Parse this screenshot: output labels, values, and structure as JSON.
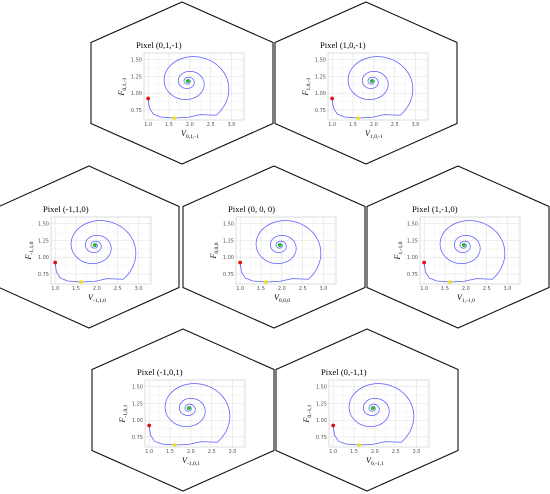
{
  "chart_data": [
    {
      "type": "line",
      "title": "Pixel (0,1,-1)",
      "xlabel_main": "V",
      "xlabel_sub": "0,1,-1",
      "ylabel_main": "F",
      "ylabel_sub": "0,1,-1",
      "xlim": [
        0.9,
        3.3
      ],
      "ylim": [
        0.6,
        1.6
      ],
      "xticks": [
        "1.0",
        "1.5",
        "2.0",
        "2.5",
        "3.0"
      ],
      "yticks": [
        "0.75",
        "1.00",
        "1.25",
        "1.50"
      ],
      "start_point": {
        "x": 1.0,
        "y": 0.92
      },
      "marker_point": {
        "x": 1.62,
        "y": 0.63
      },
      "equilibrium": {
        "x": 1.95,
        "y": 1.18
      }
    },
    {
      "type": "line",
      "title": "Pixel (1,0,-1)",
      "xlabel_main": "V",
      "xlabel_sub": "1,0,-1",
      "ylabel_main": "F",
      "ylabel_sub": "1,0,-1",
      "xlim": [
        0.9,
        3.3
      ],
      "ylim": [
        0.6,
        1.6
      ],
      "xticks": [
        "1.0",
        "1.5",
        "2.0",
        "2.5",
        "3.0"
      ],
      "yticks": [
        "0.75",
        "1.00",
        "1.25",
        "1.50"
      ],
      "start_point": {
        "x": 1.0,
        "y": 0.92
      },
      "marker_point": {
        "x": 1.62,
        "y": 0.63
      },
      "equilibrium": {
        "x": 1.95,
        "y": 1.18
      }
    },
    {
      "type": "line",
      "title": "Pixel (-1,1,0)",
      "xlabel_main": "V",
      "xlabel_sub": "-1,1,0",
      "ylabel_main": "F",
      "ylabel_sub": "-1,1,0",
      "xlim": [
        0.9,
        3.3
      ],
      "ylim": [
        0.6,
        1.6
      ],
      "xticks": [
        "1.0",
        "1.5",
        "2.0",
        "2.5",
        "3.0"
      ],
      "yticks": [
        "0.75",
        "1.00",
        "1.25",
        "1.50"
      ],
      "start_point": {
        "x": 1.0,
        "y": 0.92
      },
      "marker_point": {
        "x": 1.62,
        "y": 0.63
      },
      "equilibrium": {
        "x": 1.95,
        "y": 1.18
      }
    },
    {
      "type": "line",
      "title": "Pixel (0, 0, 0)",
      "xlabel_main": "V",
      "xlabel_sub": "0,0,0",
      "ylabel_main": "F",
      "ylabel_sub": "0,0,0",
      "xlim": [
        0.9,
        3.3
      ],
      "ylim": [
        0.6,
        1.6
      ],
      "xticks": [
        "1.0",
        "1.5",
        "2.0",
        "2.5",
        "3.0"
      ],
      "yticks": [
        "0.75",
        "1.00",
        "1.25",
        "1.50"
      ],
      "start_point": {
        "x": 1.0,
        "y": 0.92
      },
      "marker_point": {
        "x": 1.62,
        "y": 0.63
      },
      "equilibrium": {
        "x": 1.95,
        "y": 1.18
      }
    },
    {
      "type": "line",
      "title": "Pixel (1,-1,0)",
      "xlabel_main": "V",
      "xlabel_sub": "1,-1,0",
      "ylabel_main": "F",
      "ylabel_sub": "1,-1,0",
      "xlim": [
        0.9,
        3.3
      ],
      "ylim": [
        0.6,
        1.6
      ],
      "xticks": [
        "1.0",
        "1.5",
        "2.0",
        "2.5",
        "3.0"
      ],
      "yticks": [
        "0.75",
        "1.00",
        "1.25",
        "1.50"
      ],
      "start_point": {
        "x": 1.0,
        "y": 0.92
      },
      "marker_point": {
        "x": 1.62,
        "y": 0.63
      },
      "equilibrium": {
        "x": 1.95,
        "y": 1.18
      }
    },
    {
      "type": "line",
      "title": "Pixel (-1,0,1)",
      "xlabel_main": "V",
      "xlabel_sub": "-1,0,1",
      "ylabel_main": "F",
      "ylabel_sub": "-1,0,1",
      "xlim": [
        0.9,
        3.3
      ],
      "ylim": [
        0.6,
        1.6
      ],
      "xticks": [
        "1.0",
        "1.5",
        "2.0",
        "2.5",
        "3.0"
      ],
      "yticks": [
        "0.75",
        "1.00",
        "1.25",
        "1.50"
      ],
      "start_point": {
        "x": 1.0,
        "y": 0.92
      },
      "marker_point": {
        "x": 1.62,
        "y": 0.63
      },
      "equilibrium": {
        "x": 1.95,
        "y": 1.18
      }
    },
    {
      "type": "line",
      "title": "Pixel (0,-1,1)",
      "xlabel_main": "V",
      "xlabel_sub": "0,-1,1",
      "ylabel_main": "F",
      "ylabel_sub": "0,-1,1",
      "xlim": [
        0.9,
        3.3
      ],
      "ylim": [
        0.6,
        1.6
      ],
      "xticks": [
        "1.0",
        "1.5",
        "2.0",
        "2.5",
        "3.0"
      ],
      "yticks": [
        "0.75",
        "1.00",
        "1.25",
        "1.50"
      ],
      "start_point": {
        "x": 1.0,
        "y": 0.92
      },
      "marker_point": {
        "x": 1.62,
        "y": 0.63
      },
      "equilibrium": {
        "x": 1.95,
        "y": 1.18
      }
    }
  ],
  "colors": {
    "curve": "#5b5bff",
    "start_point": "#e01010",
    "marker_point": "#f2e000",
    "equilibrium": "#20c020",
    "hex_border": "#111111"
  }
}
